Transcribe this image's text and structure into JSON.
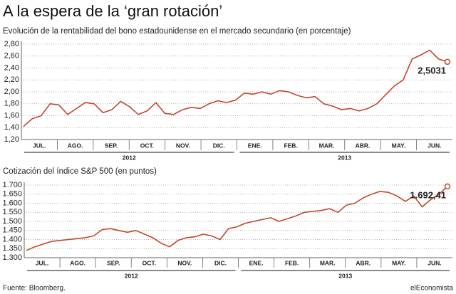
{
  "title": "A la espera de la ‘gran rotación’",
  "source": "Fuente: Bloomberg.",
  "brand": "elEconomista",
  "chart_data": [
    {
      "type": "line",
      "subtitle": "Evolución de la rentabilidad del bono estadounidense en el mercado secundario (en porcentaje)",
      "months": [
        "JUL.",
        "AGO.",
        "SEP.",
        "OCT.",
        "NOV.",
        "DIC.",
        "ENE.",
        "FEB.",
        "MAR.",
        "ABR.",
        "MAY.",
        "JUN."
      ],
      "years": [
        "2012",
        "2013"
      ],
      "ylim": [
        1.2,
        2.8
      ],
      "yticks": [
        {
          "value": 1.2,
          "label": "1,20"
        },
        {
          "value": 1.4,
          "label": "1,40"
        },
        {
          "value": 1.6,
          "label": "1,60"
        },
        {
          "value": 1.8,
          "label": "1,80"
        },
        {
          "value": 2.0,
          "label": "2,00"
        },
        {
          "value": 2.2,
          "label": "2,20"
        },
        {
          "value": 2.4,
          "label": "2,40"
        },
        {
          "value": 2.6,
          "label": "2,60"
        },
        {
          "value": 2.8,
          "label": "2,80"
        }
      ],
      "grid": true,
      "color": "#c8432b",
      "values": [
        1.42,
        1.55,
        1.6,
        1.8,
        1.78,
        1.62,
        1.72,
        1.82,
        1.8,
        1.65,
        1.7,
        1.84,
        1.75,
        1.62,
        1.68,
        1.82,
        1.64,
        1.62,
        1.7,
        1.74,
        1.72,
        1.8,
        1.85,
        1.82,
        1.86,
        1.98,
        1.96,
        2.0,
        1.96,
        2.02,
        2.0,
        1.94,
        1.9,
        1.92,
        1.8,
        1.76,
        1.7,
        1.72,
        1.68,
        1.72,
        1.8,
        1.95,
        2.1,
        2.2,
        2.55,
        2.62,
        2.7,
        2.55,
        2.5031
      ],
      "value_labels": [
        null,
        null,
        null,
        null,
        null,
        null,
        null,
        null,
        null,
        null,
        null,
        null,
        null,
        null,
        null,
        null,
        null,
        null,
        null,
        null,
        null,
        null,
        null,
        null,
        null,
        null,
        null,
        null,
        null,
        null,
        null,
        null,
        null,
        null,
        null,
        null,
        null,
        null,
        null,
        null,
        null,
        null,
        null,
        null,
        null,
        null,
        null,
        null,
        "2,5031"
      ]
    },
    {
      "type": "line",
      "subtitle": "Cotización del índice S&P 500 (en puntos)",
      "months": [
        "JUL.",
        "AGO.",
        "SEP.",
        "OCT.",
        "NOV.",
        "DIC.",
        "ENE.",
        "FEB.",
        "MAR.",
        "ABR.",
        "MAY.",
        "JUN."
      ],
      "years": [
        "2012",
        "2013"
      ],
      "ylim": [
        1300,
        1700
      ],
      "yticks": [
        {
          "value": 1300,
          "label": "1.300"
        },
        {
          "value": 1350,
          "label": "1.350"
        },
        {
          "value": 1400,
          "label": "1.400"
        },
        {
          "value": 1450,
          "label": "1.450"
        },
        {
          "value": 1500,
          "label": "1.500"
        },
        {
          "value": 1550,
          "label": "1.550"
        },
        {
          "value": 1600,
          "label": "1.600"
        },
        {
          "value": 1650,
          "label": "1.650"
        },
        {
          "value": 1700,
          "label": "1.700"
        }
      ],
      "grid": true,
      "color": "#c8432b",
      "values": [
        1340,
        1360,
        1375,
        1390,
        1395,
        1400,
        1405,
        1410,
        1420,
        1455,
        1460,
        1450,
        1440,
        1450,
        1430,
        1410,
        1380,
        1360,
        1395,
        1410,
        1415,
        1430,
        1420,
        1400,
        1460,
        1470,
        1490,
        1500,
        1510,
        1520,
        1500,
        1515,
        1530,
        1550,
        1555,
        1560,
        1570,
        1550,
        1590,
        1600,
        1630,
        1650,
        1665,
        1660,
        1640,
        1610,
        1640,
        1580,
        1620,
        1650,
        1692.41
      ],
      "value_labels": [
        null,
        null,
        null,
        null,
        null,
        null,
        null,
        null,
        null,
        null,
        null,
        null,
        null,
        null,
        null,
        null,
        null,
        null,
        null,
        null,
        null,
        null,
        null,
        null,
        null,
        null,
        null,
        null,
        null,
        null,
        null,
        null,
        null,
        null,
        null,
        null,
        null,
        null,
        null,
        null,
        null,
        null,
        null,
        null,
        null,
        null,
        null,
        null,
        null,
        null,
        "1.692,41"
      ]
    }
  ]
}
